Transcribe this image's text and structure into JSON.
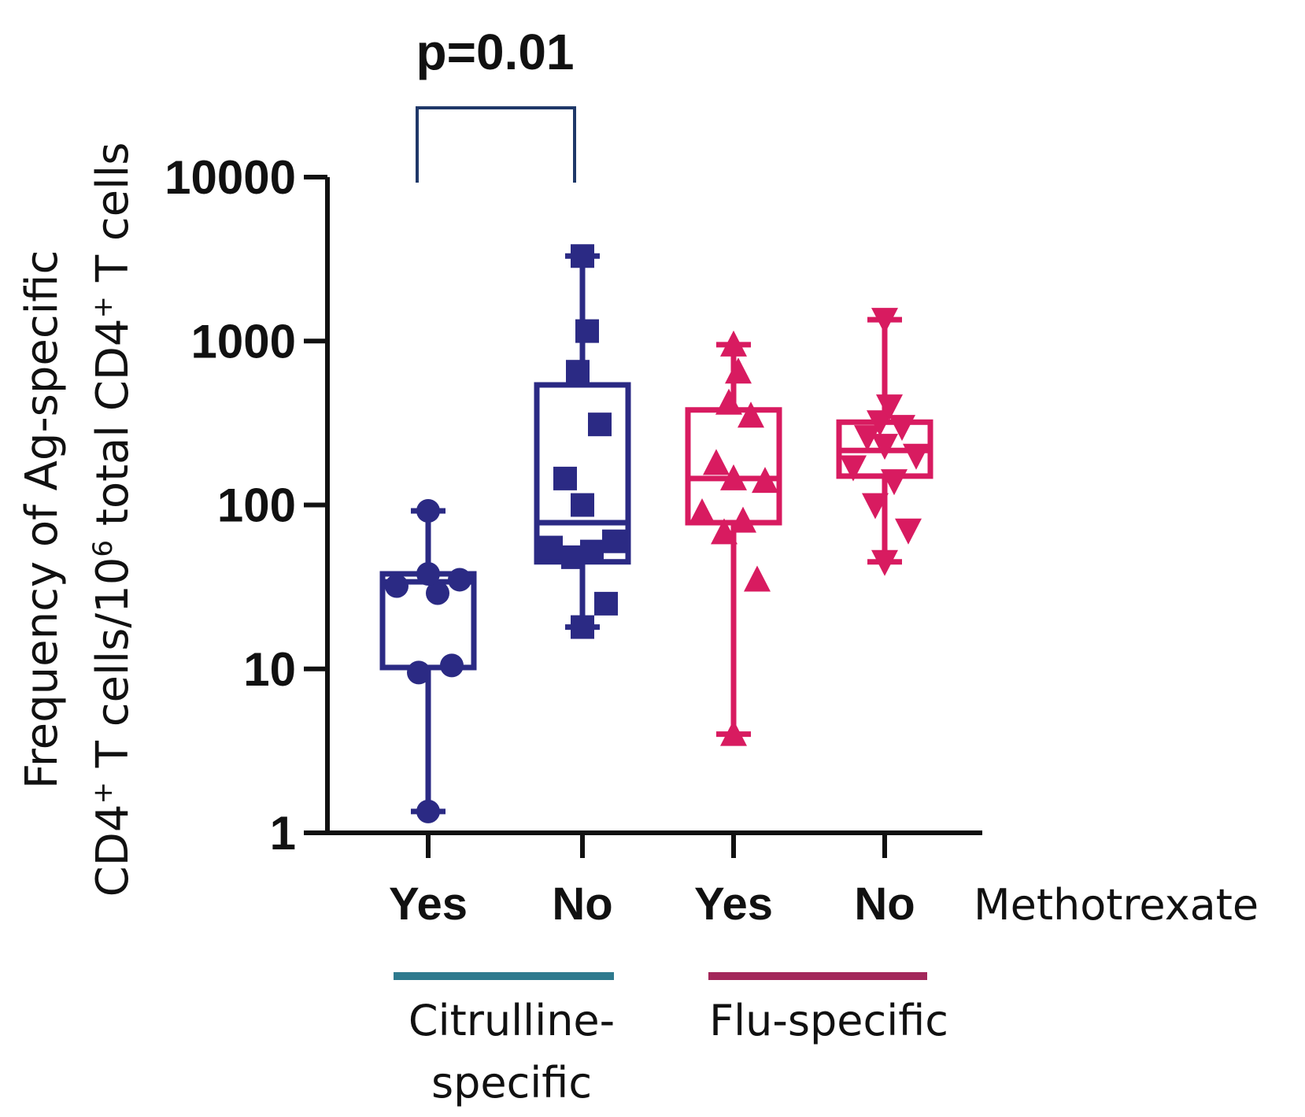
{
  "chart_data": {
    "type": "box",
    "ylabel_line1": "Frequency of Ag-specific",
    "ylabel_line2_parts": {
      "a": "CD4",
      "a_sup": "+",
      "b": " T cells/10",
      "b_sup": "6",
      "c": " total CD4",
      "c_sup": "+",
      "d": " T cells"
    },
    "yscale": "log",
    "ylim": [
      1,
      10000
    ],
    "yticks": [
      {
        "value": 1,
        "label": "1"
      },
      {
        "value": 10,
        "label": "10"
      },
      {
        "value": 100,
        "label": "100"
      },
      {
        "value": 1000,
        "label": "1000"
      },
      {
        "value": 10000,
        "label": "10000"
      }
    ],
    "factor_label": "Methotrexate",
    "groups": [
      {
        "category": "Yes",
        "specificity": "Citrulline-specific",
        "color": "#2b2a84",
        "marker": "circle",
        "min": 1.35,
        "q1": 10.2,
        "median": 34,
        "q3": 38,
        "max": 92,
        "points": [
          1.35,
          10.5,
          9.5,
          29,
          32,
          35,
          38,
          92
        ]
      },
      {
        "category": "No",
        "specificity": "Citrulline-specific",
        "color": "#2b2a84",
        "marker": "square",
        "min": 18,
        "q1": 45,
        "median": 78,
        "q3": 540,
        "max": 3300,
        "points": [
          18,
          25,
          48,
          52,
          55,
          60,
          100,
          145,
          310,
          650,
          1150,
          3300
        ]
      },
      {
        "category": "Yes",
        "specificity": "Flu-specific",
        "color": "#d81b60",
        "marker": "triangle-up",
        "min": 4,
        "q1": 78,
        "median": 145,
        "q3": 380,
        "max": 950,
        "points": [
          4,
          35,
          68,
          80,
          90,
          140,
          145,
          180,
          350,
          420,
          650,
          950
        ]
      },
      {
        "category": "No",
        "specificity": "Flu-specific",
        "color": "#d81b60",
        "marker": "triangle-down",
        "min": 45,
        "q1": 150,
        "median": 215,
        "q3": 320,
        "max": 1350,
        "points": [
          45,
          70,
          100,
          140,
          170,
          200,
          230,
          260,
          300,
          320,
          400,
          1350
        ]
      }
    ],
    "specificity_groups": [
      {
        "label_line1": "Citrulline-",
        "label_line2": "specific",
        "bar_color": "#2e7a8e"
      },
      {
        "label_line1": "Flu-specific",
        "label_line2": "",
        "bar_color": "#a3275a"
      }
    ],
    "annotation": {
      "text": "p=0.01",
      "between": [
        0,
        1
      ],
      "color": "#1f3868"
    }
  }
}
